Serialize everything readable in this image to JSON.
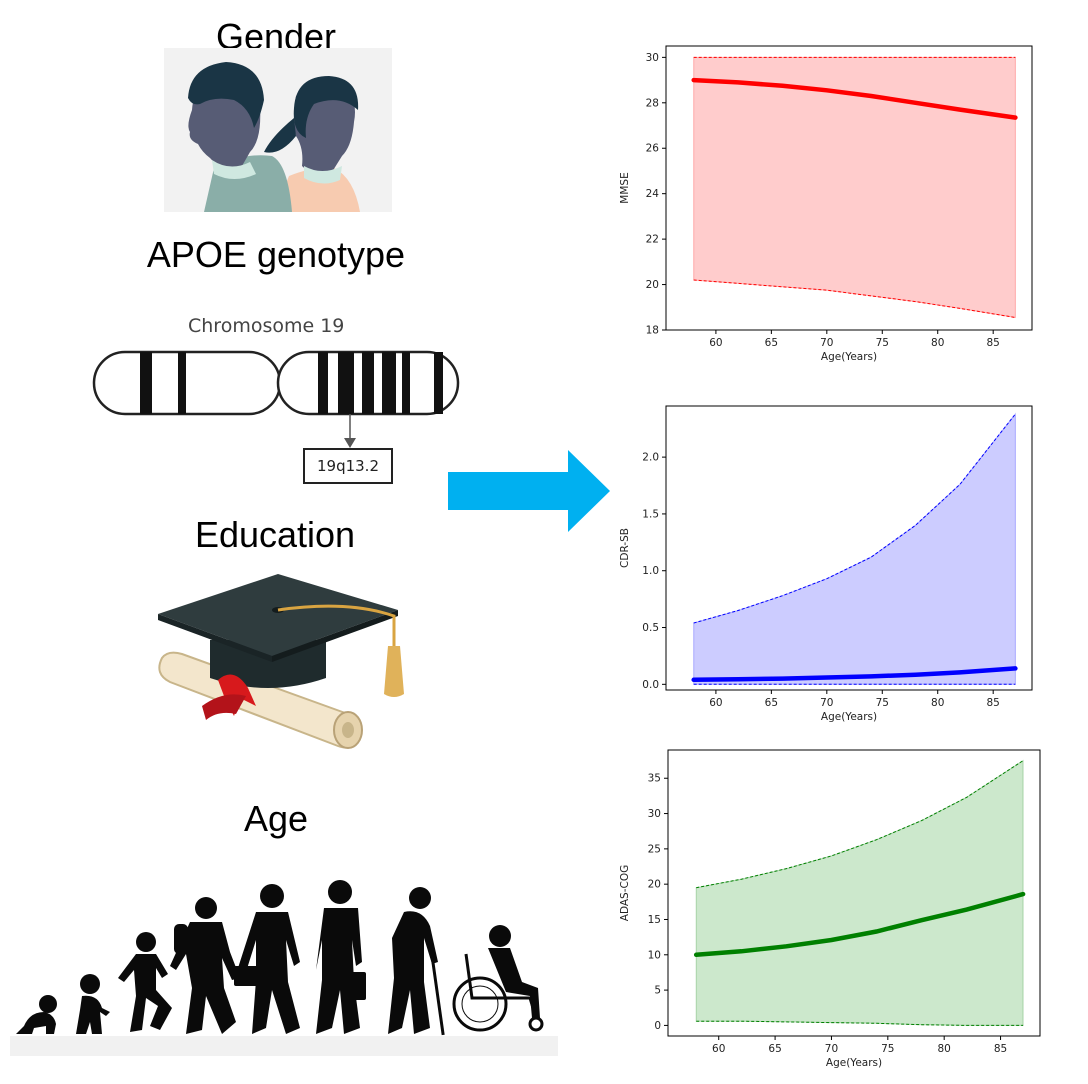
{
  "factors": {
    "gender": "Gender",
    "apoe": "APOE genotype",
    "chromosome_title": "Chromosome 19",
    "band": "19q13.2",
    "education": "Education",
    "age": "Age"
  },
  "colors": {
    "arrow": "#00b0f0",
    "mmse": "#ff0000",
    "cdr": "#0000ff",
    "adas": "#008000"
  },
  "chart_data": [
    {
      "type": "line",
      "xlabel": "Age(Years)",
      "ylabel": "MMSE",
      "xlim": [
        55.5,
        88.5
      ],
      "ylim": [
        18,
        30.5
      ],
      "xticks": [
        60,
        65,
        70,
        75,
        80,
        85
      ],
      "yticks": [
        18,
        20,
        22,
        24,
        26,
        28,
        30
      ],
      "x": [
        58,
        62,
        66,
        70,
        74,
        78,
        82,
        87
      ],
      "series": [
        {
          "role": "mean",
          "values": [
            29.0,
            28.9,
            28.75,
            28.55,
            28.3,
            28.0,
            27.7,
            27.35
          ]
        },
        {
          "role": "upper",
          "values": [
            30.0,
            30.0,
            30.0,
            30.0,
            30.0,
            30.0,
            30.0,
            30.0
          ]
        },
        {
          "role": "lower",
          "values": [
            20.2,
            20.05,
            19.9,
            19.75,
            19.5,
            19.25,
            18.95,
            18.55
          ]
        }
      ],
      "color": "#ff0000",
      "fill": "#ffcccc",
      "grid": false
    },
    {
      "type": "line",
      "xlabel": "Age(Years)",
      "ylabel": "CDR-SB",
      "xlim": [
        55.5,
        88.5
      ],
      "ylim": [
        -0.05,
        2.45
      ],
      "xticks": [
        60,
        65,
        70,
        75,
        80,
        85
      ],
      "yticks": [
        0.0,
        0.5,
        1.0,
        1.5,
        2.0
      ],
      "x": [
        58,
        62,
        66,
        70,
        74,
        78,
        82,
        87
      ],
      "series": [
        {
          "role": "mean",
          "values": [
            0.04,
            0.045,
            0.05,
            0.06,
            0.07,
            0.085,
            0.105,
            0.14
          ]
        },
        {
          "role": "upper",
          "values": [
            0.54,
            0.65,
            0.78,
            0.93,
            1.12,
            1.4,
            1.76,
            2.38
          ]
        },
        {
          "role": "lower",
          "values": [
            0.0,
            0.0,
            0.0,
            0.0,
            0.0,
            0.0,
            0.0,
            0.0
          ]
        }
      ],
      "color": "#0000ff",
      "fill": "#ccccff",
      "grid": false
    },
    {
      "type": "line",
      "xlabel": "Age(Years)",
      "ylabel": "ADAS-COG",
      "xlim": [
        55.5,
        88.5
      ],
      "ylim": [
        -1.5,
        39
      ],
      "xticks": [
        60,
        65,
        70,
        75,
        80,
        85
      ],
      "yticks": [
        0,
        5,
        10,
        15,
        20,
        25,
        30,
        35
      ],
      "x": [
        58,
        62,
        66,
        70,
        74,
        78,
        82,
        87
      ],
      "series": [
        {
          "role": "mean",
          "values": [
            10.0,
            10.5,
            11.2,
            12.1,
            13.3,
            14.9,
            16.4,
            18.6
          ]
        },
        {
          "role": "upper",
          "values": [
            19.5,
            20.7,
            22.2,
            24.0,
            26.3,
            29.0,
            32.3,
            37.5
          ]
        },
        {
          "role": "lower",
          "values": [
            0.6,
            0.6,
            0.5,
            0.4,
            0.3,
            0.1,
            0.0,
            0.0
          ]
        }
      ],
      "color": "#008000",
      "fill": "#cce8cc",
      "grid": false
    }
  ]
}
